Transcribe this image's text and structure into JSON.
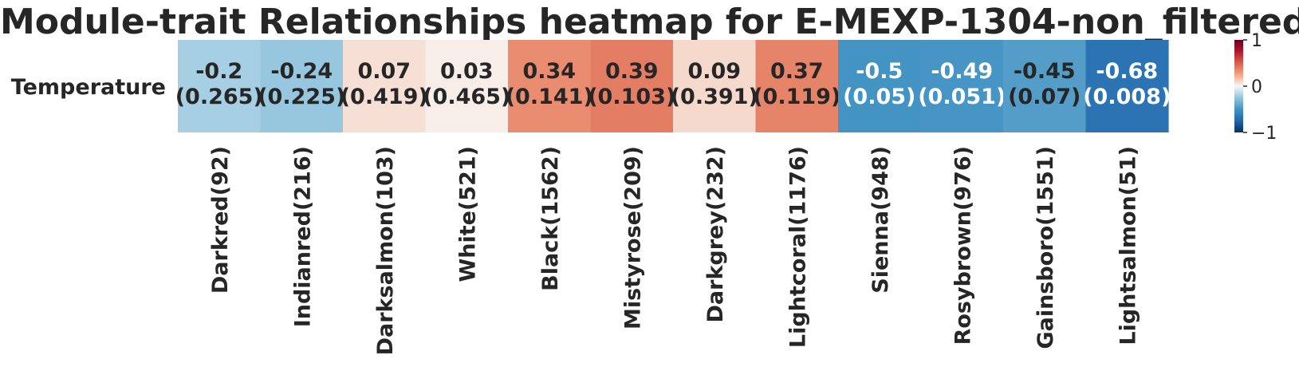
{
  "chart_data": {
    "type": "heatmap",
    "title": "Module-trait Relationships heatmap for E-MEXP-1304-non_filtered",
    "row_labels": [
      "Temperature"
    ],
    "column_labels": [
      "Darkred(92)",
      "Indianred(216)",
      "Darksalmon(103)",
      "White(521)",
      "Black(1562)",
      "Mistyrose(209)",
      "Darkgrey(232)",
      "Lightcoral(1176)",
      "Sienna(948)",
      "Rosybrown(976)",
      "Gainsboro(1551)",
      "Lightsalmon(51)"
    ],
    "values": [
      [
        -0.2,
        -0.24,
        0.07,
        0.03,
        0.34,
        0.39,
        0.09,
        0.37,
        -0.5,
        -0.49,
        -0.45,
        -0.68
      ]
    ],
    "cell_labels": [
      [
        "-0.2\n(0.265)",
        "-0.24\n(0.225)",
        "0.07\n(0.419)",
        "0.03\n(0.465)",
        "0.34\n(0.141)",
        "0.39\n(0.103)",
        "0.09\n(0.391)",
        "0.37\n(0.119)",
        "-0.5\n(0.05)",
        "-0.49\n(0.051)",
        "-0.45\n(0.07)",
        "-0.68\n(0.008)"
      ]
    ],
    "colormap": "RdBu_r",
    "vmin": -1,
    "vmax": 1,
    "colorbar_ticks": [
      "1",
      "0",
      "−1"
    ],
    "colors": {
      "negative": "#2166ac",
      "neutral": "#f7f7f7",
      "positive": "#b2182b"
    }
  }
}
